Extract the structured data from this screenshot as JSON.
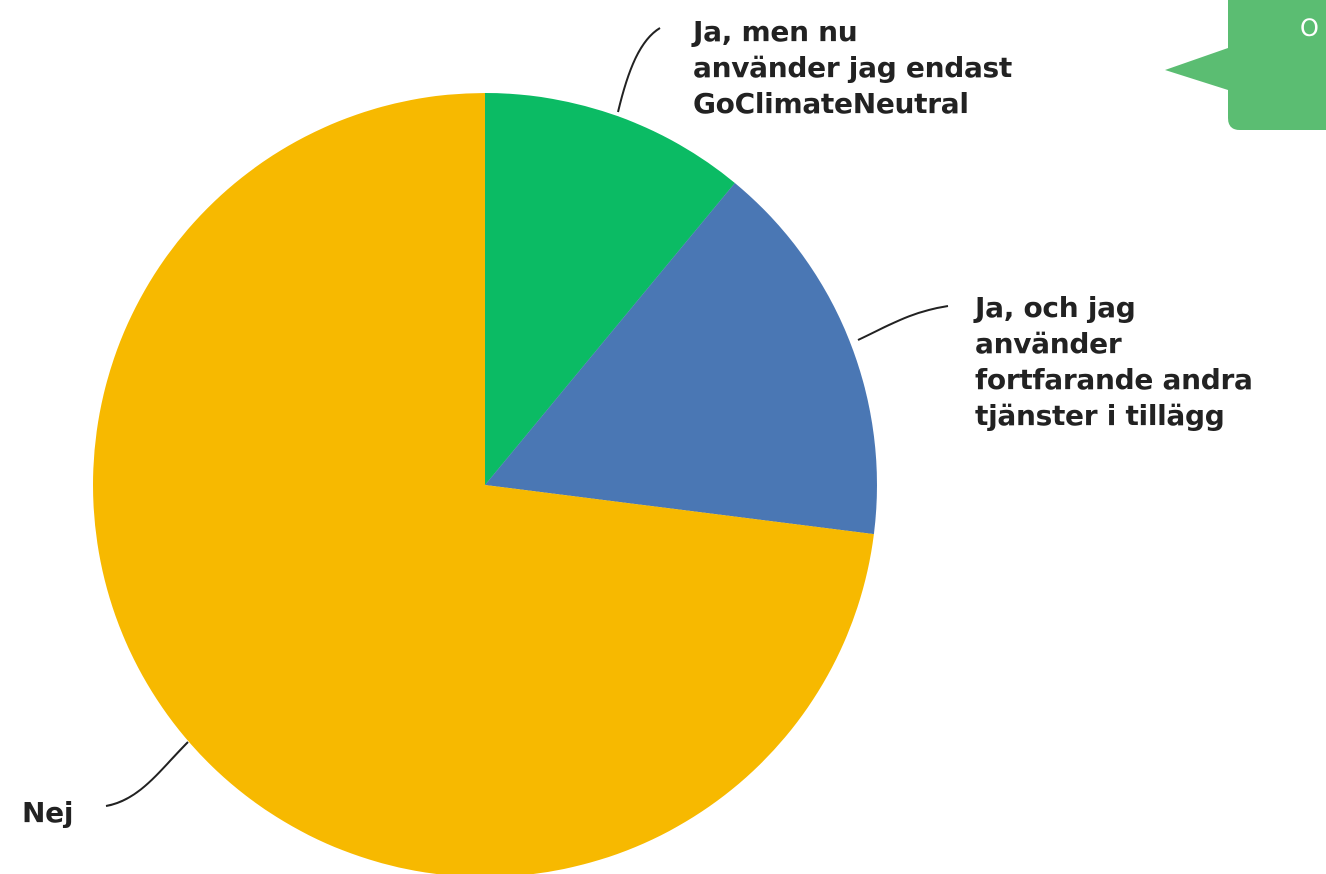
{
  "chart_data": {
    "type": "pie",
    "categories": [
      "Ja, men nu\nanvänder jag endast\nGoClimateNeutral",
      "Ja, och jag\nanvänder\nfortfarande andra\ntjänster i tillägg",
      "Nej"
    ],
    "values": [
      11,
      16,
      73
    ],
    "colors": [
      "#0bbb64",
      "#4a77b4",
      "#f7b900"
    ]
  },
  "tooltip": {
    "text": "O"
  }
}
